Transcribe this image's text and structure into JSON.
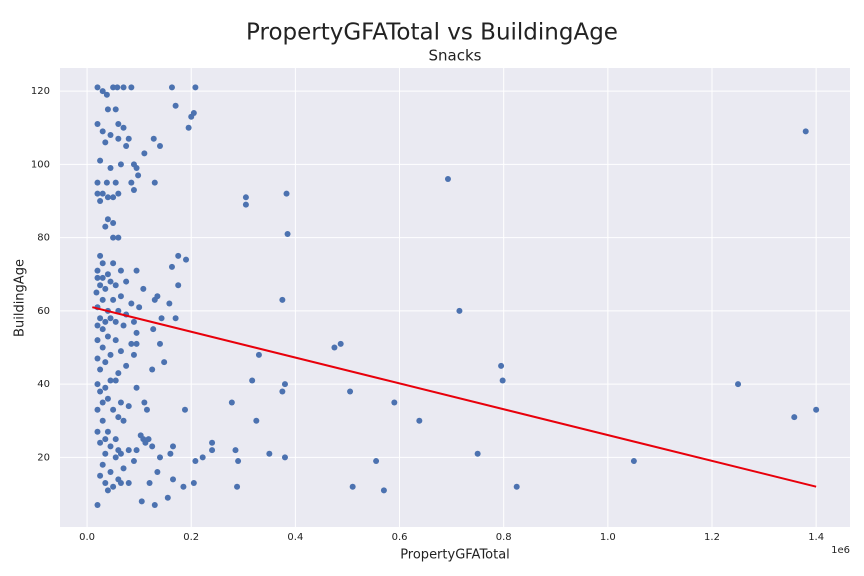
{
  "chart_data": {
    "type": "scatter",
    "title": "PropertyGFATotal vs BuildingAge",
    "subtitle": "Snacks",
    "x_label": "PropertyGFATotal",
    "y_label": "BuildingAge",
    "x_offset_label": "1e6",
    "color": "#4c72b0",
    "grid": true,
    "x": [
      1380000,
      693000,
      305000,
      383000,
      305000,
      385000,
      715000,
      375000,
      475000,
      487000,
      330000,
      795000,
      798000,
      380000,
      317000,
      1250000,
      375000,
      505000,
      590000,
      278000,
      1400000,
      1358000,
      638000,
      325000,
      350000,
      380000,
      555000,
      290000,
      750000,
      1050000,
      285000,
      240000,
      240000,
      222000,
      208000,
      510000,
      570000,
      825000,
      288000,
      205000,
      185000,
      165000,
      155000,
      130000,
      105000,
      163000,
      208000,
      170000,
      205000,
      200000,
      195000,
      128000,
      140000,
      110000,
      130000,
      95000,
      98000,
      175000,
      190000,
      163000,
      175000,
      135000,
      130000,
      108000,
      158000,
      170000,
      143000,
      148000,
      127000,
      140000,
      125000,
      188000,
      110000,
      115000,
      165000,
      160000,
      112000,
      118000,
      125000,
      135000,
      140000,
      120000,
      103000,
      108000,
      20000,
      30000,
      38000,
      50000,
      58000,
      70000,
      85000,
      40000,
      55000,
      60000,
      70000,
      20000,
      30000,
      45000,
      60000,
      80000,
      35000,
      75000,
      90000,
      65000,
      25000,
      45000,
      20000,
      38000,
      55000,
      85000,
      90000,
      20000,
      30000,
      40000,
      50000,
      60000,
      25000,
      40000,
      50000,
      35000,
      50000,
      60000,
      25000,
      30000,
      50000,
      20000,
      40000,
      65000,
      95000,
      30000,
      20000,
      45000,
      75000,
      25000,
      55000,
      35000,
      18000,
      65000,
      30000,
      50000,
      85000,
      100000,
      20000,
      40000,
      60000,
      75000,
      25000,
      45000,
      55000,
      35000,
      90000,
      20000,
      70000,
      30000,
      95000,
      40000,
      20000,
      55000,
      85000,
      95000,
      30000,
      65000,
      45000,
      20000,
      90000,
      35000,
      75000,
      25000,
      60000,
      45000,
      55000,
      20000,
      35000,
      95000,
      25000,
      40000,
      30000,
      65000,
      80000,
      20000,
      50000,
      60000,
      30000,
      70000,
      20000,
      40000,
      55000,
      35000,
      25000,
      45000,
      60000,
      80000,
      95000,
      35000,
      55000,
      65000,
      30000,
      70000,
      90000,
      45000,
      25000,
      60000,
      80000,
      35000,
      50000,
      40000,
      20000,
      65000
    ],
    "values": [
      109,
      96,
      91,
      92,
      89,
      81,
      60,
      63,
      50,
      51,
      48,
      45,
      41,
      40,
      41,
      40,
      38,
      38,
      35,
      35,
      33,
      31,
      30,
      30,
      21,
      20,
      19,
      19,
      21,
      19,
      22,
      24,
      22,
      20,
      19,
      12,
      11,
      12,
      12,
      13,
      12,
      14,
      9,
      7,
      8,
      121,
      121,
      116,
      114,
      113,
      110,
      107,
      105,
      103,
      95,
      99,
      97,
      75,
      74,
      72,
      67,
      64,
      63,
      66,
      62,
      58,
      58,
      46,
      55,
      51,
      44,
      33,
      35,
      33,
      23,
      21,
      24,
      25,
      23,
      16,
      20,
      13,
      26,
      25,
      121,
      120,
      119,
      121,
      121,
      121,
      121,
      115,
      115,
      111,
      110,
      111,
      109,
      108,
      107,
      107,
      106,
      105,
      100,
      100,
      101,
      99,
      95,
      95,
      95,
      95,
      93,
      92,
      92,
      91,
      91,
      92,
      90,
      85,
      84,
      83,
      80,
      80,
      75,
      73,
      73,
      71,
      70,
      71,
      71,
      69,
      69,
      68,
      68,
      67,
      67,
      66,
      65,
      64,
      63,
      63,
      62,
      61,
      61,
      60,
      60,
      59,
      58,
      58,
      57,
      57,
      57,
      56,
      56,
      55,
      54,
      53,
      52,
      52,
      51,
      51,
      50,
      49,
      48,
      47,
      48,
      46,
      45,
      44,
      43,
      41,
      41,
      40,
      39,
      39,
      38,
      36,
      35,
      35,
      34,
      33,
      33,
      31,
      30,
      30,
      27,
      27,
      25,
      25,
      24,
      23,
      22,
      22,
      22,
      21,
      20,
      21,
      18,
      17,
      19,
      16,
      15,
      14,
      13,
      13,
      12,
      11,
      7,
      13
    ],
    "fit": {
      "color": "#e8000b",
      "x": [
        10000,
        1400000
      ],
      "values": [
        61,
        12
      ]
    },
    "xlim": [
      -52000,
      1465000
    ],
    "ylim": [
      1,
      126.3
    ],
    "xticks": [
      {
        "value": 0,
        "label": "0.0"
      },
      {
        "value": 200000,
        "label": "0.2"
      },
      {
        "value": 400000,
        "label": "0.4"
      },
      {
        "value": 600000,
        "label": "0.6"
      },
      {
        "value": 800000,
        "label": "0.8"
      },
      {
        "value": 1000000,
        "label": "1.0"
      },
      {
        "value": 1200000,
        "label": "1.2"
      },
      {
        "value": 1400000,
        "label": "1.4"
      }
    ],
    "yticks": [
      20,
      40,
      60,
      80,
      100,
      120
    ]
  }
}
